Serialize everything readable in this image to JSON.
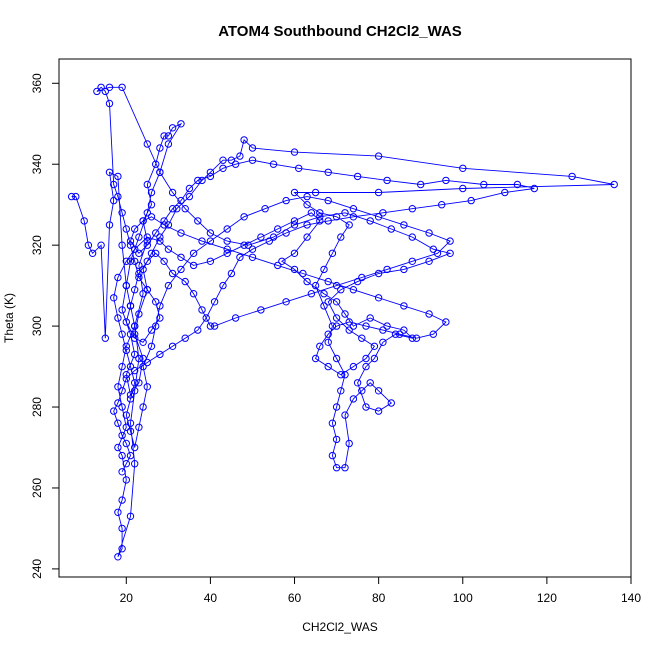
{
  "chart_data": {
    "type": "scatter",
    "title": "ATOM4 Southbound CH2Cl2_WAS",
    "xlabel": "CH2Cl2_WAS",
    "ylabel": "Theta (K)",
    "xlim": [
      4,
      140
    ],
    "ylim": [
      238,
      366
    ],
    "x_ticks": [
      "20",
      "40",
      "60",
      "80",
      "100",
      "120",
      "140"
    ],
    "y_ticks": [
      "240",
      "260",
      "280",
      "300",
      "320",
      "340",
      "360"
    ],
    "grid": false,
    "legend": "none",
    "color": "#0000ff",
    "series": [
      {
        "connected": true,
        "points": [
          [
            7,
            332
          ],
          [
            8,
            332
          ],
          [
            10,
            326
          ],
          [
            11,
            320
          ],
          [
            12,
            318
          ],
          [
            14,
            320
          ],
          [
            15,
            297
          ],
          [
            16,
            325
          ],
          [
            17,
            331
          ],
          [
            16,
            338
          ],
          [
            18,
            337
          ],
          [
            19,
            320
          ],
          [
            20,
            310
          ],
          [
            21,
            305
          ],
          [
            22,
            300
          ],
          [
            20,
            295
          ],
          [
            19,
            290
          ],
          [
            18,
            285
          ],
          [
            19,
            280
          ],
          [
            20,
            275
          ],
          [
            18,
            270
          ],
          [
            19,
            268
          ],
          [
            20,
            262
          ],
          [
            19,
            257
          ],
          [
            18,
            254
          ],
          [
            19,
            250
          ],
          [
            19,
            245
          ],
          [
            18,
            243
          ],
          [
            21,
            253
          ],
          [
            22,
            266
          ],
          [
            21,
            276
          ],
          [
            22,
            284
          ],
          [
            23,
            292
          ],
          [
            22,
            300
          ],
          [
            24,
            308
          ],
          [
            23,
            315
          ],
          [
            25,
            321
          ],
          [
            24,
            326
          ],
          [
            26,
            330
          ],
          [
            25,
            335
          ],
          [
            27,
            340
          ],
          [
            28,
            344
          ],
          [
            29,
            347
          ],
          [
            30,
            347
          ],
          [
            31,
            349
          ],
          [
            33,
            350
          ],
          [
            30,
            345
          ],
          [
            28,
            338
          ],
          [
            26,
            333
          ],
          [
            25,
            328
          ],
          [
            23,
            322
          ],
          [
            21,
            316
          ],
          [
            20,
            310
          ],
          [
            19,
            304
          ],
          [
            21,
            298
          ],
          [
            22,
            293
          ],
          [
            20,
            288
          ],
          [
            21,
            283
          ],
          [
            23,
            286
          ],
          [
            24,
            292
          ],
          [
            22,
            298
          ],
          [
            23,
            303
          ],
          [
            25,
            309
          ],
          [
            24,
            314
          ],
          [
            26,
            318
          ],
          [
            28,
            322
          ],
          [
            30,
            325
          ],
          [
            32,
            329
          ],
          [
            35,
            332
          ],
          [
            38,
            336
          ],
          [
            40,
            338
          ],
          [
            43,
            341
          ],
          [
            45,
            341
          ],
          [
            47,
            342
          ],
          [
            48,
            346
          ],
          [
            50,
            344
          ],
          [
            60,
            343
          ],
          [
            80,
            342
          ],
          [
            100,
            339
          ],
          [
            126,
            337
          ],
          [
            136,
            335
          ],
          [
            100,
            334
          ],
          [
            80,
            333
          ],
          [
            65,
            333
          ],
          [
            60,
            333
          ],
          [
            63,
            330
          ],
          [
            66,
            328
          ],
          [
            70,
            327
          ],
          [
            73,
            325
          ],
          [
            71,
            322
          ],
          [
            69,
            318
          ],
          [
            67,
            314
          ],
          [
            65,
            310
          ],
          [
            67,
            305
          ],
          [
            69,
            300
          ],
          [
            68,
            296
          ],
          [
            70,
            292
          ],
          [
            72,
            288
          ],
          [
            71,
            284
          ],
          [
            70,
            280
          ],
          [
            69,
            276
          ],
          [
            70,
            272
          ],
          [
            69,
            268
          ],
          [
            70,
            265
          ],
          [
            72,
            265
          ],
          [
            73,
            271
          ],
          [
            72,
            278
          ],
          [
            74,
            282
          ],
          [
            76,
            284
          ],
          [
            78,
            286
          ],
          [
            80,
            284
          ],
          [
            83,
            281
          ],
          [
            80,
            279
          ],
          [
            77,
            280
          ],
          [
            75,
            286
          ],
          [
            77,
            290
          ],
          [
            79,
            292
          ],
          [
            81,
            296
          ],
          [
            84,
            298
          ],
          [
            88,
            297
          ],
          [
            86,
            299
          ],
          [
            82,
            300
          ],
          [
            78,
            302
          ],
          [
            74,
            300
          ],
          [
            72,
            303
          ],
          [
            70,
            306
          ],
          [
            67,
            308
          ],
          [
            63,
            311
          ],
          [
            60,
            314
          ],
          [
            57,
            316
          ],
          [
            60,
            318
          ],
          [
            63,
            322
          ],
          [
            66,
            326
          ],
          [
            64,
            328
          ],
          [
            60,
            326
          ],
          [
            56,
            324
          ],
          [
            52,
            322
          ],
          [
            48,
            320
          ],
          [
            44,
            318
          ],
          [
            40,
            316
          ],
          [
            36,
            315
          ],
          [
            33,
            317
          ],
          [
            30,
            319
          ],
          [
            28,
            321
          ],
          [
            25,
            322
          ],
          [
            22,
            319
          ],
          [
            20,
            316
          ],
          [
            18,
            312
          ],
          [
            17,
            307
          ],
          [
            18,
            302
          ],
          [
            19,
            298
          ],
          [
            20,
            294
          ],
          [
            21,
            290
          ],
          [
            22,
            286
          ],
          [
            21,
            282
          ],
          [
            20,
            278
          ],
          [
            21,
            274
          ],
          [
            22,
            270
          ],
          [
            23,
            275
          ],
          [
            24,
            280
          ],
          [
            25,
            285
          ],
          [
            24,
            290
          ],
          [
            26,
            295
          ],
          [
            27,
            300
          ],
          [
            28,
            305
          ],
          [
            30,
            310
          ],
          [
            33,
            314
          ],
          [
            36,
            318
          ],
          [
            40,
            321
          ],
          [
            44,
            324
          ],
          [
            48,
            327
          ],
          [
            53,
            329
          ],
          [
            58,
            331
          ],
          [
            63,
            332
          ],
          [
            68,
            331
          ],
          [
            74,
            329
          ],
          [
            80,
            327
          ],
          [
            86,
            325
          ],
          [
            92,
            323
          ],
          [
            97,
            321
          ],
          [
            94,
            318
          ],
          [
            88,
            316
          ],
          [
            82,
            314
          ],
          [
            76,
            312
          ],
          [
            70,
            310
          ],
          [
            64,
            308
          ],
          [
            58,
            306
          ],
          [
            52,
            304
          ],
          [
            46,
            302
          ],
          [
            41,
            300
          ],
          [
            40,
            300
          ],
          [
            38,
            304
          ],
          [
            36,
            308
          ],
          [
            34,
            311
          ],
          [
            31,
            313
          ],
          [
            29,
            316
          ],
          [
            27,
            318
          ],
          [
            25,
            316
          ],
          [
            23,
            313
          ],
          [
            22,
            309
          ],
          [
            21,
            305
          ],
          [
            20,
            301
          ],
          [
            22,
            297
          ],
          [
            24,
            296
          ],
          [
            26,
            299
          ],
          [
            28,
            302
          ],
          [
            27,
            306
          ],
          [
            25,
            309
          ],
          [
            23,
            312
          ],
          [
            22,
            316
          ],
          [
            21,
            320
          ],
          [
            20,
            324
          ],
          [
            19,
            328
          ],
          [
            18,
            332
          ],
          [
            17,
            335
          ],
          [
            16,
            355
          ],
          [
            15,
            358
          ],
          [
            14,
            359
          ],
          [
            13,
            358
          ],
          [
            16,
            359
          ],
          [
            19,
            359
          ],
          [
            25,
            345
          ],
          [
            28,
            338
          ],
          [
            31,
            333
          ],
          [
            34,
            329
          ],
          [
            37,
            326
          ],
          [
            40,
            323
          ],
          [
            44,
            321
          ],
          [
            49,
            320
          ],
          [
            55,
            322
          ],
          [
            60,
            325
          ],
          [
            66,
            327
          ],
          [
            72,
            328
          ],
          [
            78,
            326
          ],
          [
            83,
            324
          ],
          [
            88,
            322
          ],
          [
            93,
            319
          ],
          [
            97,
            318
          ],
          [
            92,
            316
          ],
          [
            86,
            314
          ],
          [
            80,
            313
          ],
          [
            75,
            311
          ],
          [
            71,
            309
          ],
          [
            68,
            306
          ],
          [
            70,
            302
          ],
          [
            73,
            299
          ],
          [
            76,
            297
          ],
          [
            79,
            295
          ],
          [
            77,
            292
          ],
          [
            74,
            290
          ],
          [
            71,
            288
          ],
          [
            68,
            290
          ],
          [
            65,
            292
          ],
          [
            66,
            295
          ],
          [
            68,
            298
          ],
          [
            70,
            300
          ],
          [
            73,
            301
          ],
          [
            77,
            300
          ],
          [
            81,
            299
          ],
          [
            85,
            298
          ],
          [
            89,
            297
          ],
          [
            93,
            298
          ],
          [
            96,
            301
          ],
          [
            92,
            303
          ],
          [
            86,
            305
          ],
          [
            80,
            307
          ],
          [
            74,
            309
          ],
          [
            68,
            311
          ],
          [
            62,
            313
          ],
          [
            56,
            315
          ],
          [
            50,
            317
          ],
          [
            44,
            319
          ],
          [
            38,
            321
          ],
          [
            33,
            323
          ],
          [
            29,
            325
          ],
          [
            26,
            327
          ],
          [
            24,
            326
          ],
          [
            22,
            324
          ],
          [
            21,
            321
          ],
          [
            23,
            318
          ],
          [
            25,
            320
          ],
          [
            27,
            323
          ],
          [
            29,
            326
          ],
          [
            31,
            329
          ],
          [
            33,
            331
          ],
          [
            35,
            334
          ],
          [
            37,
            336
          ],
          [
            40,
            337
          ],
          [
            43,
            339
          ],
          [
            46,
            340
          ],
          [
            50,
            341
          ],
          [
            55,
            340
          ],
          [
            61,
            339
          ],
          [
            68,
            338
          ],
          [
            75,
            337
          ],
          [
            82,
            336
          ],
          [
            90,
            335
          ],
          [
            96,
            336
          ],
          [
            105,
            335
          ],
          [
            113,
            335
          ],
          [
            117,
            334
          ],
          [
            110,
            333
          ],
          [
            102,
            331
          ],
          [
            95,
            330
          ],
          [
            88,
            329
          ],
          [
            81,
            328
          ],
          [
            74,
            327
          ],
          [
            68,
            326
          ],
          [
            63,
            325
          ],
          [
            58,
            323
          ],
          [
            54,
            321
          ],
          [
            50,
            319
          ],
          [
            47,
            317
          ],
          [
            45,
            313
          ],
          [
            43,
            310
          ],
          [
            41,
            306
          ],
          [
            39,
            302
          ],
          [
            37,
            299
          ],
          [
            34,
            297
          ],
          [
            31,
            295
          ],
          [
            28,
            293
          ],
          [
            25,
            291
          ],
          [
            22,
            289
          ],
          [
            20,
            287
          ],
          [
            19,
            284
          ],
          [
            18,
            281
          ],
          [
            17,
            279
          ],
          [
            18,
            276
          ],
          [
            19,
            273
          ],
          [
            20,
            271
          ],
          [
            21,
            268
          ],
          [
            20,
            266
          ],
          [
            19,
            264
          ]
        ]
      }
    ]
  }
}
